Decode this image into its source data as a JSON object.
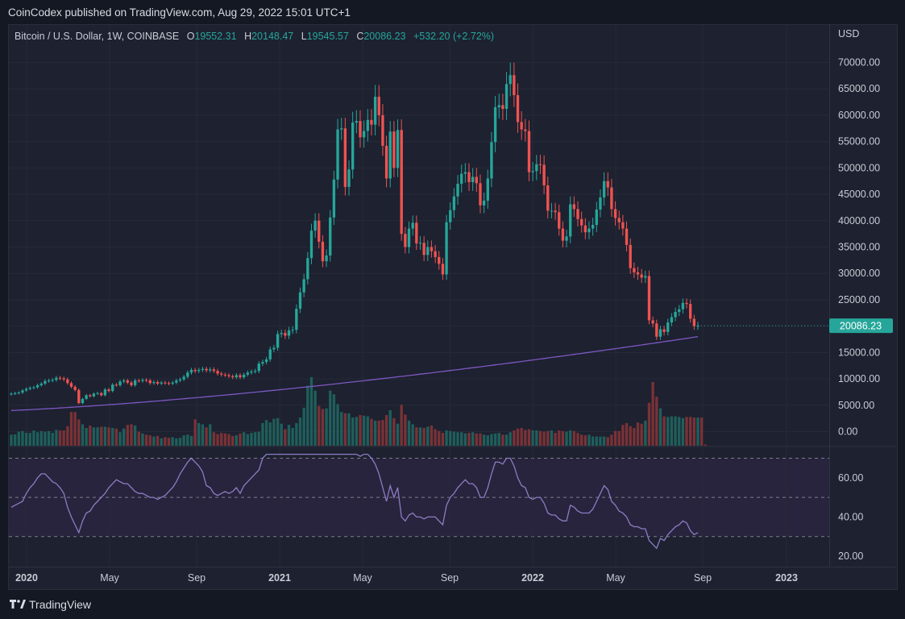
{
  "header": {
    "publisher_text": "CoinCodex published on TradingView.com, Aug 29, 2022 15:01 UTC+1"
  },
  "legend": {
    "symbol": "Bitcoin / U.S. Dollar, 1W, COINBASE",
    "open_label": "O",
    "open_value": "19552.31",
    "high_label": "H",
    "high_value": "20148.47",
    "low_label": "L",
    "low_value": "19545.57",
    "close_label": "C",
    "close_value": "20086.23",
    "change": "+532.20 (+2.72%)"
  },
  "price_axis": {
    "unit": "USD",
    "ticks": [
      "70000.00",
      "65000.00",
      "60000.00",
      "55000.00",
      "50000.00",
      "45000.00",
      "40000.00",
      "35000.00",
      "30000.00",
      "25000.00",
      "20000.00",
      "15000.00",
      "10000.00",
      "5000.00",
      "0.00"
    ],
    "last_price_tag": "20086.23"
  },
  "rsi_axis": {
    "ticks": [
      "60.00",
      "40.00",
      "20.00"
    ]
  },
  "time_axis": {
    "labels": [
      "2020",
      "May",
      "Sep",
      "2021",
      "May",
      "Sep",
      "2022",
      "May",
      "Sep",
      "2023"
    ]
  },
  "footer": {
    "brand": "TradingView"
  },
  "colors": {
    "up": "#26a69a",
    "down": "#ef5350",
    "ma": "#7e57c2",
    "rsi": "#8e7cc3",
    "background": "#1d2130"
  },
  "chart_data": {
    "type": "candlestick",
    "title": "Bitcoin / U.S. Dollar, 1W, COINBASE",
    "ylabel": "USD",
    "ylim": [
      0,
      72000
    ],
    "ma_start": 4000,
    "ma_end": 18000,
    "closes": [
      7200,
      7300,
      7400,
      7800,
      8100,
      8300,
      8400,
      8800,
      9100,
      9600,
      9700,
      9800,
      10200,
      10100,
      9900,
      9200,
      8500,
      7900,
      5400,
      6200,
      6900,
      6700,
      7200,
      7300,
      6900,
      8000,
      7700,
      8900,
      8800,
      9500,
      9700,
      9300,
      8800,
      9700,
      9600,
      9800,
      9700,
      9200,
      9400,
      9100,
      9300,
      9200,
      9100,
      9300,
      9700,
      9900,
      10400,
      11200,
      11700,
      11500,
      11700,
      11900,
      11600,
      11800,
      11500,
      11000,
      10800,
      10700,
      10500,
      10300,
      10700,
      10300,
      10800,
      11200,
      11400,
      11500,
      12900,
      13200,
      13700,
      15600,
      15900,
      18500,
      18700,
      18200,
      19200,
      19300,
      23300,
      26400,
      28900,
      32900,
      38100,
      40000,
      36000,
      32300,
      33400,
      40600,
      47800,
      57300,
      57500,
      46400,
      49700,
      58600,
      58900,
      55800,
      57000,
      59100,
      58200,
      63500,
      60000,
      54200,
      48000,
      56900,
      50000,
      57200,
      37500,
      35000,
      38500,
      39600,
      35700,
      35800,
      33500,
      35000,
      34200,
      33100,
      31800,
      29800,
      39700,
      42000,
      44600,
      47000,
      48900,
      49200,
      47300,
      48300,
      47100,
      42900,
      43800,
      48000,
      54900,
      61500,
      61900,
      61200,
      65900,
      67600,
      63800,
      58700,
      57300,
      57000,
      49200,
      49400,
      50700,
      50600,
      46700,
      41900,
      41900,
      41600,
      38500,
      36200,
      37000,
      43100,
      42200,
      40300,
      39100,
      37800,
      38500,
      39200,
      42100,
      44400,
      47500,
      46300,
      42200,
      40500,
      39700,
      38500,
      35400,
      31000,
      30200,
      29800,
      29200,
      29500,
      21100,
      20500,
      18000,
      19400,
      18900,
      20700,
      21700,
      22700,
      23200,
      24400,
      24200,
      21400,
      20000,
      20086
    ],
    "volumes": [
      1800,
      1850,
      2300,
      2400,
      2100,
      2100,
      2500,
      2200,
      2400,
      2300,
      2400,
      2100,
      2600,
      2500,
      2500,
      3200,
      5500,
      5500,
      4300,
      3500,
      2900,
      3300,
      3000,
      3000,
      3100,
      3100,
      3000,
      2900,
      2800,
      2200,
      2800,
      3400,
      3500,
      3300,
      2300,
      2000,
      1800,
      1700,
      1500,
      1600,
      1200,
      1400,
      1300,
      1400,
      1200,
      1300,
      1700,
      1800,
      1600,
      4300,
      3700,
      3500,
      3000,
      3500,
      2200,
      1900,
      2100,
      2000,
      1900,
      1600,
      1700,
      2000,
      2200,
      1900,
      2100,
      2200,
      2300,
      3700,
      4200,
      3800,
      4400,
      4500,
      3600,
      2700,
      3400,
      2900,
      3700,
      4600,
      6200,
      9800,
      11200,
      9000,
      6500,
      6000,
      6100,
      9000,
      8400,
      6800,
      5500,
      5300,
      5300,
      4600,
      4700,
      5000,
      4900,
      4800,
      4400,
      4100,
      4100,
      4200,
      5000,
      5800,
      4500,
      3600,
      6700,
      5100,
      4100,
      3500,
      3000,
      3000,
      2900,
      3100,
      3300,
      2700,
      2400,
      2100,
      2500,
      2400,
      2300,
      2200,
      2200,
      2000,
      2100,
      2200,
      2000,
      2000,
      1800,
      1700,
      1900,
      2000,
      2100,
      1800,
      1800,
      2200,
      2500,
      2800,
      2900,
      2600,
      2700,
      2500,
      2500,
      2400,
      2300,
      2400,
      2500,
      2100,
      2500,
      2400,
      2300,
      2500,
      2400,
      2100,
      1800,
      1700,
      1800,
      1500,
      1500,
      1500,
      1500,
      1400,
      1800,
      2400,
      2400,
      3400,
      3700,
      3200,
      2900,
      3800,
      3600,
      4100,
      7000,
      10400,
      8000,
      6100,
      4800,
      4700,
      4800,
      4800,
      4700,
      4500,
      4700,
      4700,
      4600,
      4600,
      4600,
      200
    ],
    "rsi": [
      45,
      46,
      47,
      48,
      52,
      55,
      57,
      60,
      62,
      62,
      60,
      58,
      57,
      55,
      52,
      45,
      40,
      36,
      32,
      38,
      42,
      43,
      46,
      48,
      50,
      52,
      55,
      57,
      59,
      58,
      57,
      57,
      55,
      53,
      52,
      52,
      51,
      50,
      50,
      49,
      50,
      51,
      53,
      55,
      58,
      62,
      65,
      68,
      70,
      68,
      66,
      63,
      56,
      55,
      52,
      51,
      52,
      53,
      52,
      53,
      55,
      52,
      56,
      58,
      60,
      62,
      64,
      70,
      75,
      78,
      80,
      82,
      84,
      84,
      82,
      83,
      85,
      88,
      90,
      92,
      95,
      90,
      82,
      75,
      77,
      82,
      85,
      86,
      85,
      72,
      72,
      76,
      75,
      71,
      72,
      72,
      70,
      67,
      62,
      55,
      48,
      56,
      50,
      55,
      40,
      38,
      41,
      42,
      40,
      40,
      39,
      40,
      40,
      40,
      38,
      36,
      46,
      50,
      52,
      55,
      57,
      59,
      57,
      57,
      55,
      50,
      50,
      55,
      62,
      68,
      68,
      67,
      70,
      70,
      66,
      60,
      56,
      55,
      50,
      49,
      50,
      50,
      47,
      42,
      41,
      41,
      39,
      38,
      38,
      46,
      45,
      43,
      42,
      42,
      42,
      44,
      48,
      52,
      56,
      54,
      48,
      46,
      43,
      42,
      40,
      36,
      35,
      35,
      34,
      34,
      28,
      26,
      24,
      29,
      28,
      31,
      33,
      35,
      36,
      38,
      37,
      33,
      31,
      32
    ]
  }
}
